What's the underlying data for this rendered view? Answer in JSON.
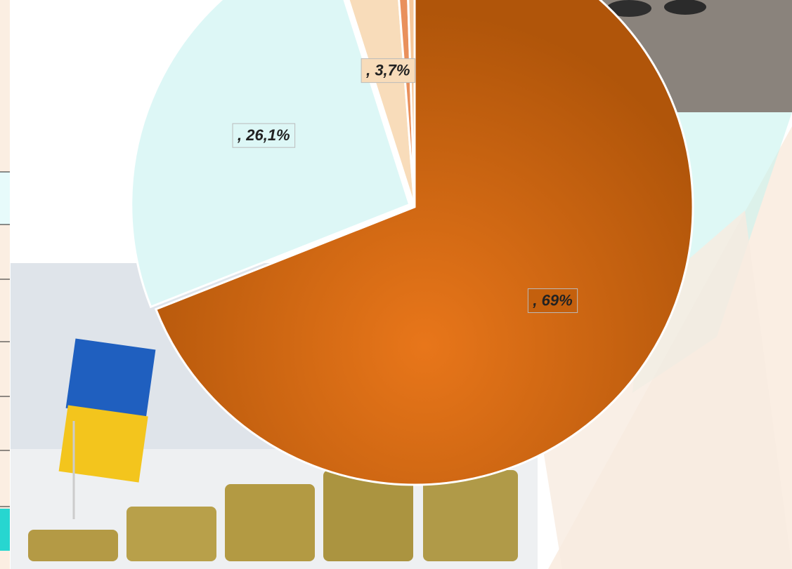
{
  "chart_data": {
    "type": "pie",
    "categories": [
      null,
      null,
      null,
      null,
      null
    ],
    "values": [
      69,
      26.1,
      3.7,
      0.7,
      0.5
    ],
    "value_labels": [
      ", 69%",
      ", 26,1%",
      ", 3,7%",
      null,
      null
    ],
    "colors": [
      "#c4600d",
      "#ddf7f6",
      "#f8dcba",
      "#e9905c",
      "#f6c79a"
    ]
  }
}
